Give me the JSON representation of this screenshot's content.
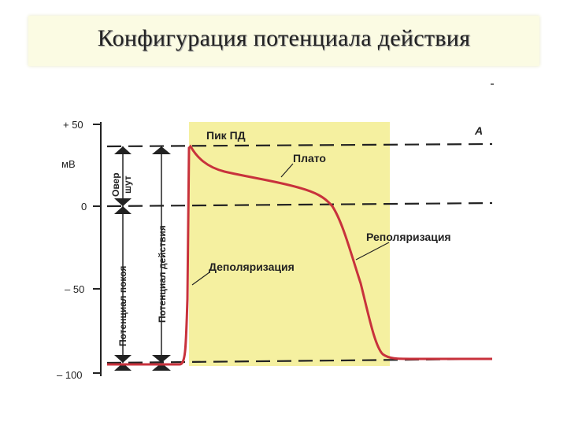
{
  "title": "Конфигурация потенциала действия",
  "axis": {
    "unit": "мВ",
    "ticks": [
      {
        "label": "+ 50",
        "value": 50
      },
      {
        "label": "0",
        "value": 0
      },
      {
        "label": "– 50",
        "value": -50
      },
      {
        "label": "– 100",
        "value": -100
      }
    ]
  },
  "labels": {
    "peak": "Пик ПД",
    "letter": "А",
    "plateau": "Плато",
    "repolarization": "Реполяризация",
    "depolarization": "Деполяризация",
    "overshoot_line1": "Овер",
    "overshoot_line2": "шут",
    "resting_potential": "Потенциал покоя",
    "action_potential": "Потенциал действия"
  },
  "colors": {
    "background_zone": "#f5f0a0",
    "curve": "#c8323c",
    "lines": "#222222"
  }
}
